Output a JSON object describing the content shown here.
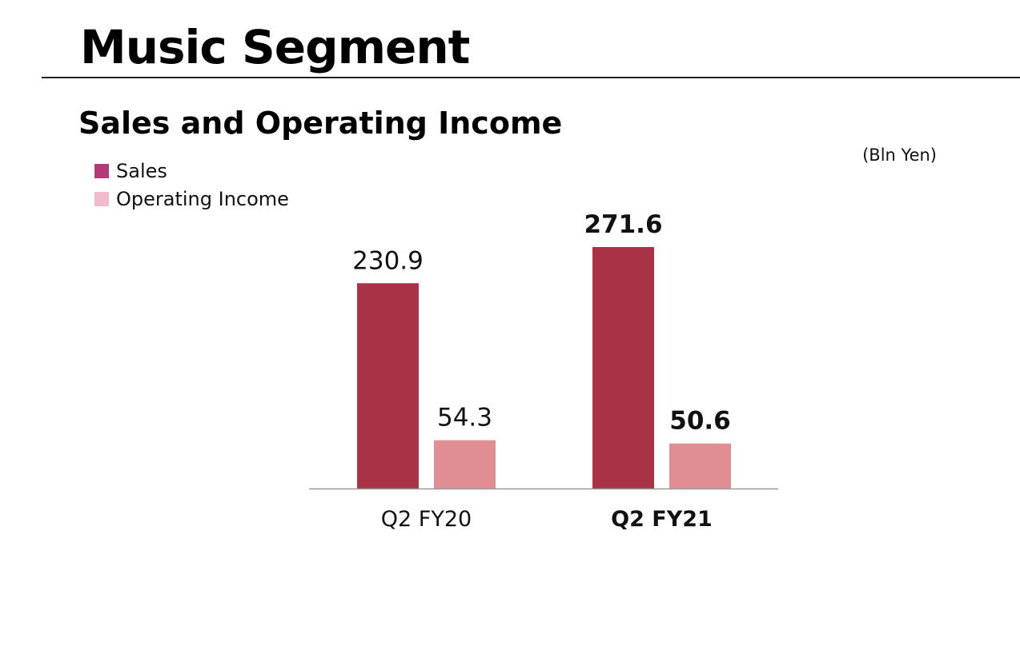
{
  "page": {
    "title": "Music Segment"
  },
  "chart_data": {
    "type": "bar",
    "title": "Sales and Operating Income",
    "unit": "(Bln Yen)",
    "categories": [
      "Q2 FY20",
      "Q2 FY21"
    ],
    "series": [
      {
        "name": "Sales",
        "values": [
          230.9,
          271.6
        ],
        "color": "#a83246",
        "legend_color": "#b33a7a"
      },
      {
        "name": "Operating Income",
        "values": [
          54.3,
          50.6
        ],
        "color": "#e08d93",
        "legend_color": "#f0bccd"
      }
    ],
    "emphasized_category": "Q2 FY21",
    "legend_position": "top-left",
    "grid": false
  }
}
